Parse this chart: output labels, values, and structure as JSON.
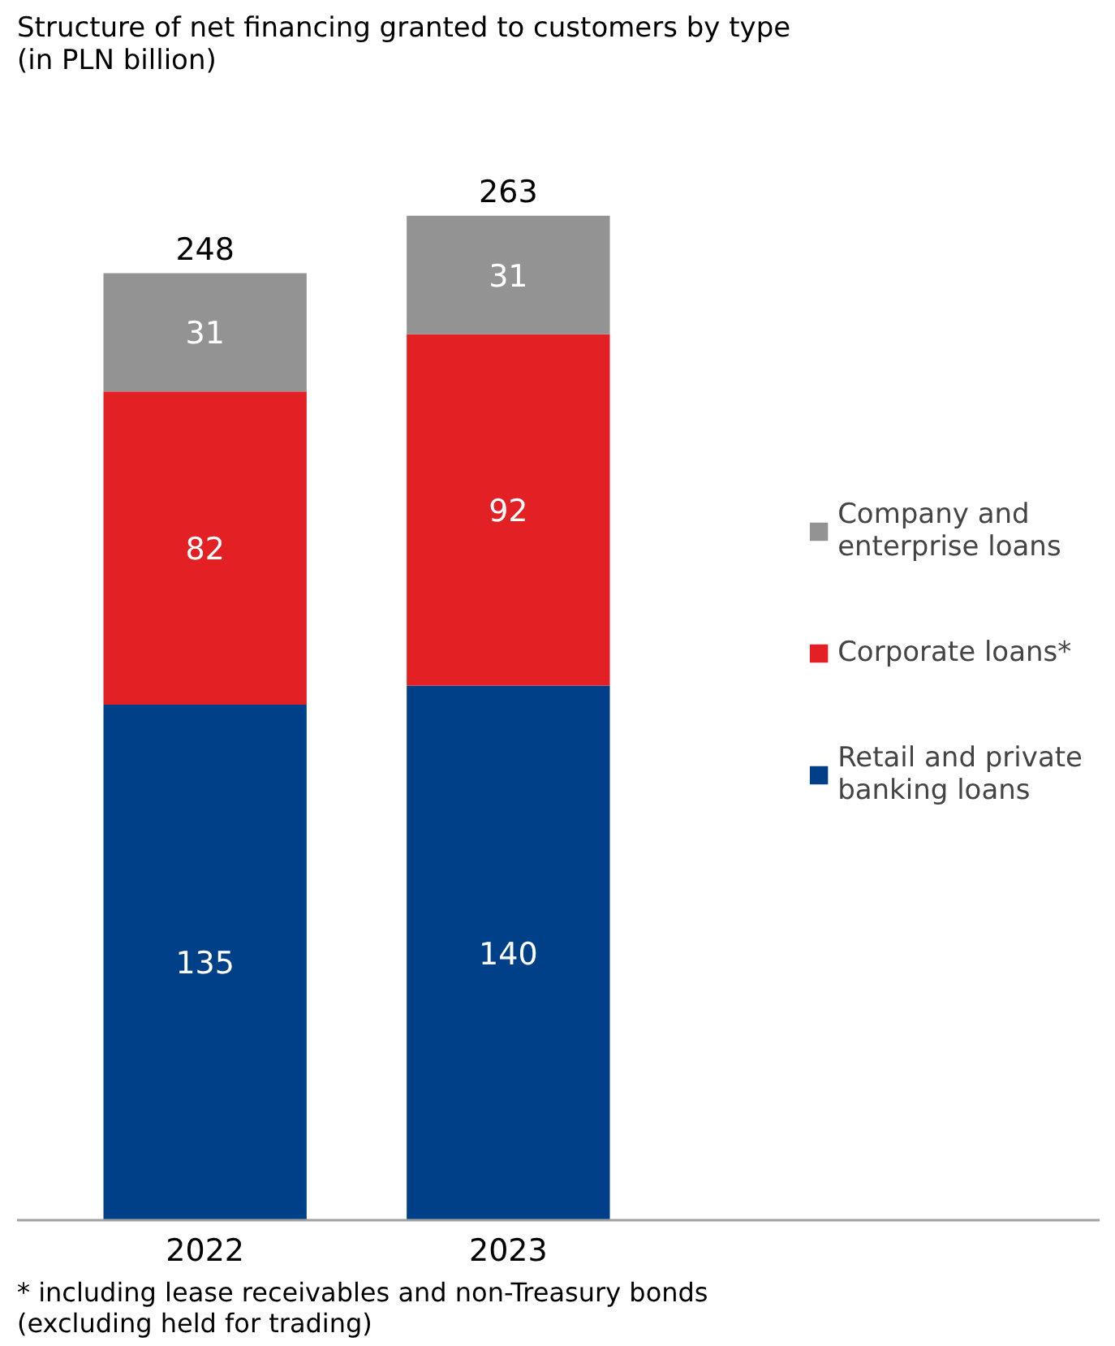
{
  "chart_data": {
    "type": "bar",
    "title": "Structure of net financing granted to customers by type (in PLN billion)",
    "categories": [
      "2022",
      "2023"
    ],
    "stacked": true,
    "series": [
      {
        "name": "Retail and private banking loans",
        "color": "#004089",
        "values": [
          135,
          140
        ]
      },
      {
        "name": "Corporate loans*",
        "color": "#e32024",
        "values": [
          82,
          92
        ]
      },
      {
        "name": "Company and enterprise loans",
        "color": "#939393",
        "values": [
          31,
          31
        ]
      }
    ],
    "data_labels": true,
    "totals": [
      "248",
      "263"
    ],
    "tick_labels": "x",
    "grid": false,
    "legend": "right",
    "annotations": [
      "* including lease receivables and non-Treasury bonds (excluding held for trading)"
    ]
  }
}
